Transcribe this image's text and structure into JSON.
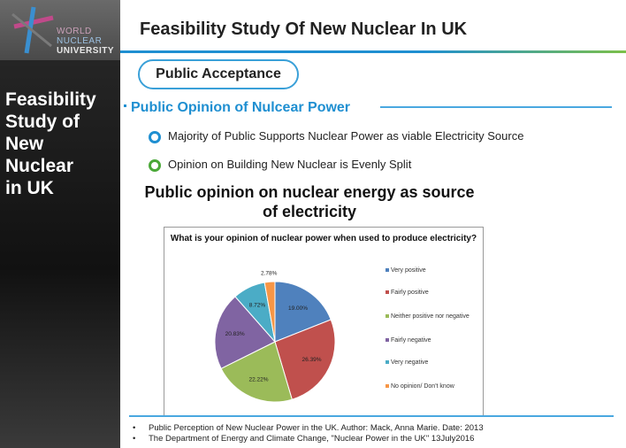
{
  "sidebar": {
    "logo": {
      "line1": "WORLD",
      "line2": "NUCLEAR",
      "line3": "UNIVERSITY"
    },
    "title": "Feasibility\nStudy of\nNew\nNuclear\nin UK"
  },
  "header": {
    "title": "Feasibility Study Of New Nuclear In UK"
  },
  "section": {
    "pill": "Public Acceptance",
    "subheading": "Public Opinion of Nulcear Power",
    "points": [
      {
        "text": "Majority of Public Supports Nuclear Power as viable Electricity Source",
        "color": "#1f8fd1"
      },
      {
        "text": "Opinion on Building New Nuclear is Evenly Split",
        "color": "#4aa838"
      }
    ]
  },
  "chart_heading": "Public opinion on nuclear energy as source of electricity",
  "chart_data": {
    "type": "pie",
    "title": "What is your opinion of nuclear power when used to produce electricity?",
    "slices": [
      {
        "label": "Very positive",
        "value": 19.0,
        "display": "19.00%",
        "color": "#4f81bd"
      },
      {
        "label": "Fairly positive",
        "value": 26.39,
        "display": "26.39%",
        "color": "#c0504d"
      },
      {
        "label": "Neither positive nor negative",
        "value": 22.22,
        "display": "22.22%",
        "color": "#9bbb59"
      },
      {
        "label": "Fairly negative",
        "value": 20.83,
        "display": "20.83%",
        "color": "#8064a2"
      },
      {
        "label": "Very negative",
        "value": 8.72,
        "display": "8.72%",
        "color": "#4bacc6"
      },
      {
        "label": "No opinion/ Don't know",
        "value": 2.78,
        "display": "2.78%",
        "color": "#f79646"
      }
    ],
    "legend_position": "right"
  },
  "references": [
    "Public Perception of New Nuclear Power in the UK. Author: Mack, Anna Marie. Date: 2013",
    "The Department of Energy and Climate Change, \"Nuclear Power in the UK\" 13July2016"
  ],
  "colors": {
    "accent": "#1f8fd1",
    "green": "#7cc04a"
  }
}
